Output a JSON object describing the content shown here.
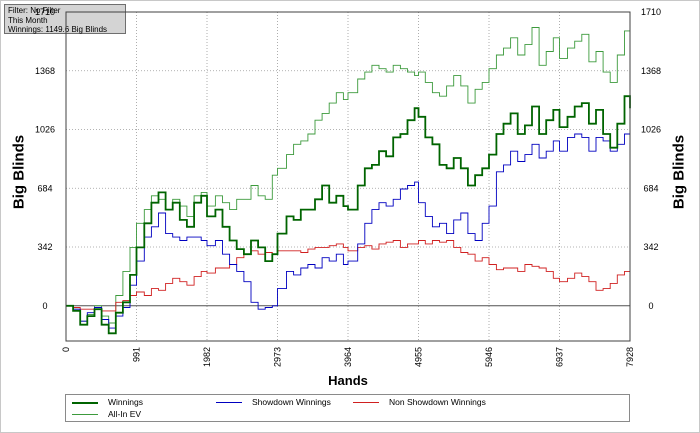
{
  "filter_box": {
    "lines": [
      "Filter: No Filter",
      "This Month",
      "Winnings: 1149.6 Big Blinds"
    ]
  },
  "chart_data": {
    "type": "line",
    "title": "",
    "xlabel": "Hands",
    "ylabel": "Big Blinds",
    "xlim": [
      0,
      7928
    ],
    "ylim": [
      -205,
      1710
    ],
    "x_ticks": [
      "0",
      "991",
      "1982",
      "2973",
      "3964",
      "4955",
      "5946",
      "6937",
      "7928"
    ],
    "y_ticks": [
      "0",
      "342",
      "684",
      "1026",
      "1368",
      "1710"
    ],
    "grid": true,
    "legend_position": "bottom",
    "series": [
      {
        "name": "Winnings",
        "color": "#006400",
        "x": [
          0,
          100,
          200,
          300,
          400,
          500,
          600,
          700,
          800,
          900,
          991,
          1100,
          1200,
          1300,
          1400,
          1500,
          1600,
          1700,
          1800,
          1900,
          1982,
          2100,
          2200,
          2300,
          2400,
          2500,
          2600,
          2700,
          2800,
          2900,
          2973,
          3100,
          3200,
          3300,
          3400,
          3500,
          3600,
          3700,
          3800,
          3900,
          3964,
          4100,
          4200,
          4300,
          4400,
          4500,
          4600,
          4700,
          4800,
          4900,
          4955,
          5050,
          5150,
          5250,
          5350,
          5450,
          5550,
          5650,
          5750,
          5850,
          5946,
          6050,
          6150,
          6250,
          6350,
          6450,
          6550,
          6650,
          6750,
          6850,
          6937,
          7050,
          7150,
          7250,
          7350,
          7450,
          7550,
          7650,
          7750,
          7850,
          7928
        ],
        "values": [
          0,
          -30,
          -110,
          -60,
          -20,
          -110,
          -160,
          -40,
          20,
          180,
          340,
          480,
          600,
          660,
          560,
          600,
          500,
          460,
          600,
          640,
          520,
          560,
          460,
          380,
          330,
          300,
          380,
          340,
          260,
          300,
          420,
          520,
          500,
          560,
          560,
          620,
          700,
          600,
          640,
          580,
          560,
          700,
          800,
          820,
          900,
          870,
          980,
          1000,
          1080,
          1150,
          1100,
          980,
          940,
          820,
          800,
          860,
          800,
          700,
          760,
          800,
          880,
          1000,
          1060,
          1120,
          1000,
          1050,
          1160,
          1000,
          1080,
          1140,
          1040,
          1100,
          1160,
          1180,
          1060,
          1140,
          1000,
          920,
          1060,
          1220,
          1150
        ]
      },
      {
        "name": "Showdown Winnings",
        "color": "#0000c0",
        "x": [
          0,
          100,
          200,
          300,
          400,
          500,
          600,
          700,
          800,
          900,
          991,
          1100,
          1200,
          1300,
          1400,
          1500,
          1600,
          1700,
          1800,
          1900,
          1982,
          2100,
          2200,
          2300,
          2400,
          2500,
          2600,
          2700,
          2800,
          2900,
          2973,
          3100,
          3200,
          3300,
          3400,
          3500,
          3600,
          3700,
          3800,
          3900,
          3964,
          4100,
          4200,
          4300,
          4400,
          4500,
          4600,
          4700,
          4800,
          4900,
          4955,
          5050,
          5150,
          5250,
          5350,
          5450,
          5550,
          5650,
          5750,
          5850,
          5946,
          6050,
          6150,
          6250,
          6350,
          6450,
          6550,
          6650,
          6750,
          6850,
          6937,
          7050,
          7150,
          7250,
          7350,
          7450,
          7550,
          7650,
          7750,
          7850,
          7928
        ],
        "values": [
          0,
          -20,
          -90,
          -40,
          -10,
          -80,
          -130,
          -60,
          -10,
          120,
          260,
          400,
          460,
          540,
          420,
          400,
          380,
          400,
          400,
          380,
          350,
          380,
          300,
          240,
          200,
          140,
          20,
          -20,
          -10,
          0,
          100,
          200,
          180,
          220,
          240,
          220,
          280,
          260,
          300,
          240,
          260,
          360,
          480,
          560,
          600,
          580,
          620,
          680,
          700,
          720,
          600,
          520,
          460,
          480,
          420,
          500,
          540,
          420,
          380,
          480,
          580,
          780,
          820,
          900,
          840,
          880,
          940,
          860,
          900,
          960,
          900,
          980,
          1000,
          980,
          900,
          980,
          960,
          900,
          940,
          1000,
          980
        ]
      },
      {
        "name": "Non Showdown Winnings",
        "color": "#d02020",
        "x": [
          0,
          100,
          200,
          300,
          400,
          500,
          600,
          700,
          800,
          900,
          991,
          1100,
          1200,
          1300,
          1400,
          1500,
          1600,
          1700,
          1800,
          1900,
          1982,
          2100,
          2200,
          2300,
          2400,
          2500,
          2600,
          2700,
          2800,
          2900,
          2973,
          3100,
          3200,
          3300,
          3400,
          3500,
          3600,
          3700,
          3800,
          3900,
          3964,
          4100,
          4200,
          4300,
          4400,
          4500,
          4600,
          4700,
          4800,
          4900,
          4955,
          5050,
          5150,
          5250,
          5350,
          5450,
          5550,
          5650,
          5750,
          5850,
          5946,
          6050,
          6150,
          6250,
          6350,
          6450,
          6550,
          6650,
          6750,
          6850,
          6937,
          7050,
          7150,
          7250,
          7350,
          7450,
          7550,
          7650,
          7750,
          7850,
          7928
        ],
        "values": [
          0,
          -10,
          -20,
          -20,
          -10,
          -30,
          -30,
          20,
          30,
          60,
          80,
          60,
          100,
          90,
          130,
          160,
          140,
          120,
          170,
          200,
          190,
          220,
          220,
          240,
          280,
          300,
          320,
          300,
          310,
          300,
          320,
          320,
          320,
          310,
          330,
          340,
          340,
          350,
          360,
          340,
          320,
          340,
          350,
          330,
          360,
          370,
          380,
          340,
          360,
          360,
          380,
          360,
          380,
          370,
          380,
          340,
          310,
          300,
          260,
          280,
          240,
          210,
          220,
          220,
          200,
          240,
          230,
          220,
          200,
          160,
          140,
          160,
          190,
          170,
          140,
          90,
          100,
          130,
          180,
          200,
          200
        ]
      },
      {
        "name": "All-In EV",
        "color": "#3c9a3c",
        "x": [
          0,
          100,
          200,
          300,
          400,
          500,
          600,
          700,
          800,
          900,
          991,
          1100,
          1200,
          1300,
          1400,
          1500,
          1600,
          1700,
          1800,
          1900,
          1982,
          2100,
          2200,
          2300,
          2400,
          2500,
          2600,
          2700,
          2800,
          2900,
          2973,
          3100,
          3200,
          3300,
          3400,
          3500,
          3600,
          3700,
          3800,
          3900,
          3964,
          4100,
          4200,
          4300,
          4400,
          4500,
          4600,
          4700,
          4800,
          4900,
          4955,
          5050,
          5150,
          5250,
          5350,
          5450,
          5550,
          5650,
          5750,
          5850,
          5946,
          6050,
          6150,
          6250,
          6350,
          6450,
          6550,
          6650,
          6750,
          6850,
          6937,
          7050,
          7150,
          7250,
          7350,
          7450,
          7550,
          7650,
          7750,
          7850,
          7928
        ],
        "values": [
          0,
          -20,
          -90,
          -50,
          0,
          -60,
          -100,
          60,
          200,
          340,
          480,
          560,
          640,
          620,
          560,
          620,
          580,
          520,
          640,
          660,
          580,
          640,
          600,
          560,
          620,
          620,
          700,
          640,
          620,
          760,
          800,
          880,
          940,
          960,
          1000,
          1080,
          1120,
          1180,
          1240,
          1200,
          1240,
          1320,
          1360,
          1400,
          1380,
          1360,
          1400,
          1380,
          1360,
          1340,
          1360,
          1300,
          1240,
          1220,
          1280,
          1340,
          1280,
          1180,
          1260,
          1300,
          1380,
          1460,
          1500,
          1560,
          1460,
          1520,
          1620,
          1400,
          1480,
          1560,
          1440,
          1500,
          1540,
          1580,
          1420,
          1480,
          1360,
          1300,
          1460,
          1600,
          1670
        ]
      }
    ]
  }
}
